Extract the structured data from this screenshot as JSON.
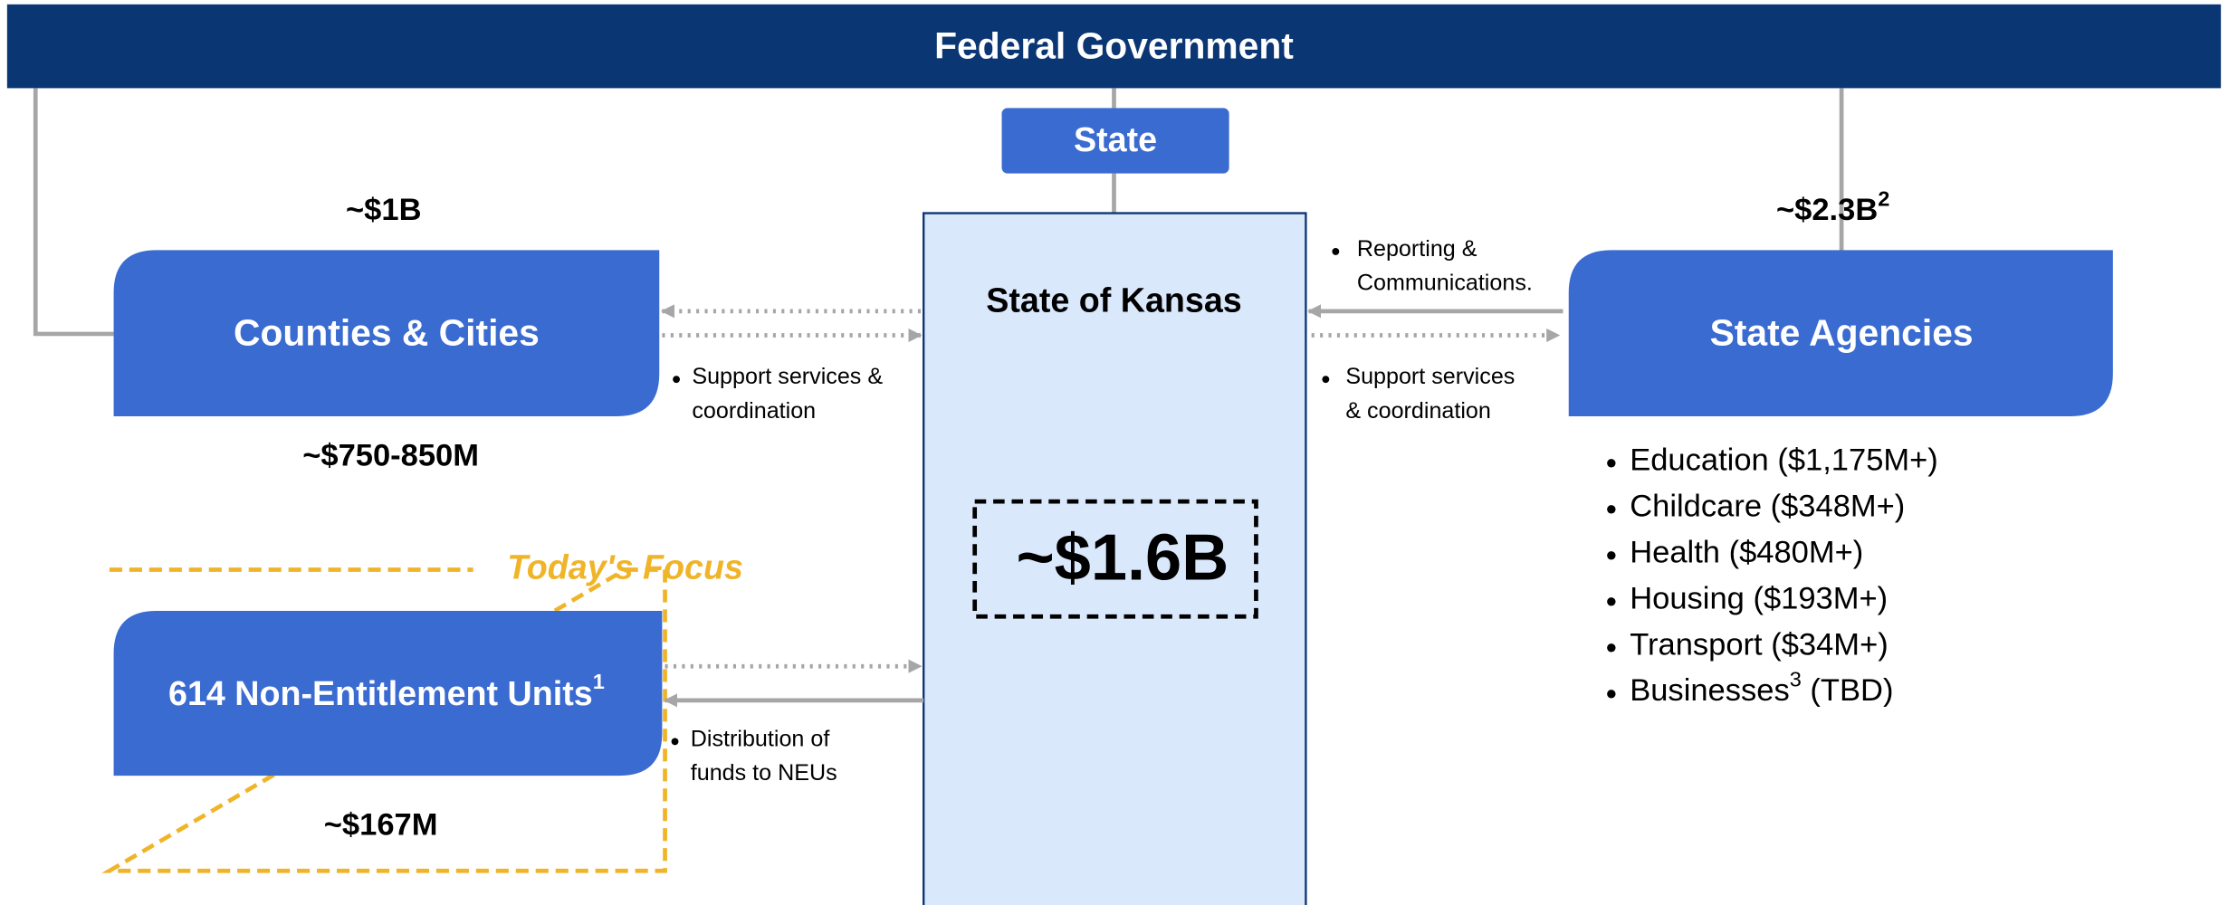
{
  "header": {
    "title": "Federal Government"
  },
  "state_label": "State",
  "center": {
    "title": "State of Kansas",
    "amount": "~$1.6B"
  },
  "counties": {
    "label": "Counties & Cities",
    "amount_top": "~$1B",
    "amount_bottom": "~$750-850M",
    "flow_note": [
      "Support services &",
      "coordination"
    ]
  },
  "neu": {
    "label": "614 Non-Entitlement Units",
    "sup": "1",
    "amount": "~$167M",
    "focus": "Today's Focus",
    "flow_note": [
      "Distribution of",
      "funds to NEUs"
    ]
  },
  "agencies": {
    "label": "State Agencies",
    "amount": "~$2.3B",
    "amount_sup": "2",
    "report_note": [
      "Reporting &",
      "Communications."
    ],
    "flow_note": [
      "Support services",
      "& coordination"
    ],
    "items": [
      "Education ($1,175M+)",
      "Childcare ($348M+)",
      "Health ($480M+)",
      "Housing ($193M+)",
      "Transport ($34M+)"
    ],
    "last_item": {
      "text": "Businesses",
      "sup": "3",
      "suffix": " (TBD)"
    }
  }
}
